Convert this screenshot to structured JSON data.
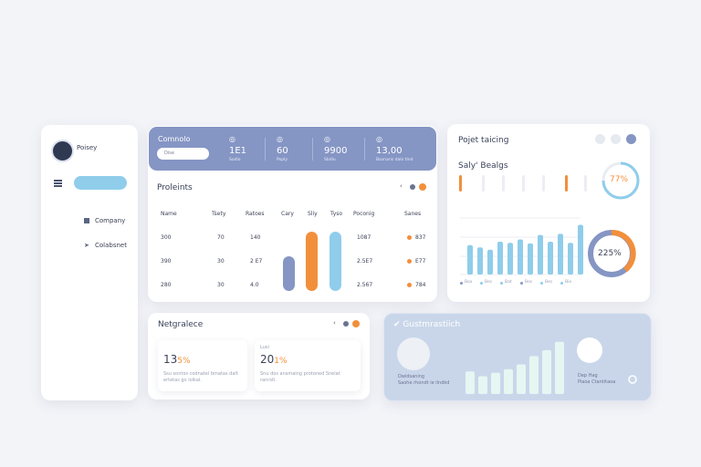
{
  "sidebar": {
    "user": "Poisey",
    "menu": [
      "Company",
      "Colabsnet"
    ]
  },
  "header": {
    "title": "Comnolo",
    "search": "Dise",
    "stats": [
      {
        "value": "1E1",
        "label": "Sodlo"
      },
      {
        "value": "60",
        "label": "Poply"
      },
      {
        "value": "9900",
        "label": "Sbdlu"
      },
      {
        "value": "13,00",
        "label": "Bsonaris dalo tlnd"
      }
    ]
  },
  "table": {
    "title": "Proleints",
    "columns": [
      "Name",
      "Tsety",
      "Ratoes",
      "Cary",
      "Sliy",
      "Tyso",
      "Poconig",
      "Sanes"
    ],
    "rows": [
      [
        "300",
        "70",
        "140",
        "1087",
        "837"
      ],
      [
        "390",
        "30",
        "2 E7",
        "2.5E7",
        "E77"
      ],
      [
        "280",
        "30",
        "4.0",
        "2.567",
        "784"
      ]
    ]
  },
  "project": {
    "title": "Pojet taicing",
    "subtitle": "Saly' Bealgs",
    "gauge": "77%",
    "donut": "225%",
    "bars": [
      52,
      48,
      44,
      58,
      56,
      62,
      55,
      70,
      58,
      72,
      56,
      88
    ],
    "legend": [
      "Bsa",
      "Bec",
      "Bat",
      "Boc",
      "Bec",
      "Bio"
    ]
  },
  "bottom_left": {
    "title": "Netgralece",
    "cards": [
      {
        "value": "13",
        "unit": "5%",
        "text": "Ssu sontos codnatel bmatas dalt ertetas go lolkal."
      },
      {
        "label": "Lusi",
        "value": "20",
        "unit": "1%",
        "text": "Snu dos ansmaing protoned Snelat ranrstl."
      }
    ]
  },
  "bottom_right": {
    "title": "Gustmrastiich",
    "user": "Dwidsaning",
    "user_note": "Saohe rhondt ie ilndkd",
    "bars": [
      38,
      30,
      36,
      42,
      50,
      64,
      74,
      88
    ],
    "side_label": "Dep Hag",
    "side_note": "Piaoa Ctantitaoa"
  }
}
